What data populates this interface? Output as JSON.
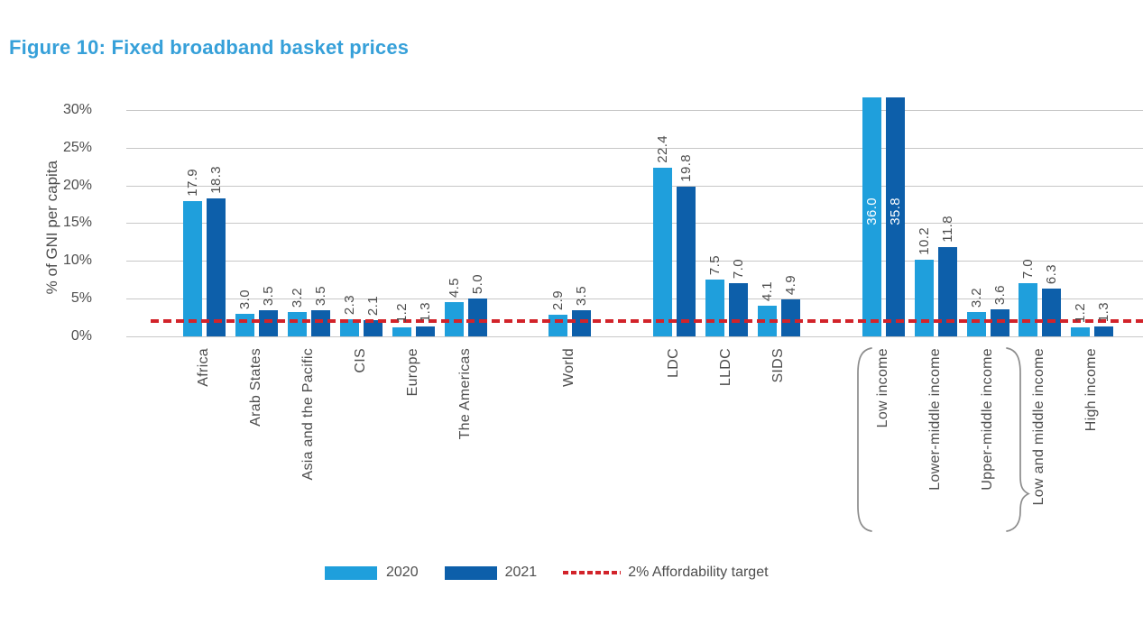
{
  "chart_data": {
    "type": "bar",
    "title": "Figure 10: Fixed broadband basket prices",
    "xlabel": "",
    "ylabel": "% of GNI per capita",
    "ylim": [
      0,
      30
    ],
    "yticks": [
      "0%",
      "5%",
      "10%",
      "15%",
      "20%",
      "25%",
      "30%"
    ],
    "grid": "horizontal",
    "legend_position": "bottom",
    "series_names": [
      "2020",
      "2021"
    ],
    "target_line": {
      "value": 2,
      "label": "2% Affordability target"
    },
    "value_label_precision": 1,
    "groups": [
      {
        "name": "regions",
        "categories": [
          {
            "label": "Africa",
            "values": [
              17.9,
              18.3
            ]
          },
          {
            "label": "Arab States",
            "values": [
              3.0,
              3.5
            ]
          },
          {
            "label": "Asia and the Pacific",
            "values": [
              3.2,
              3.5
            ]
          },
          {
            "label": "CIS",
            "values": [
              2.3,
              2.1
            ]
          },
          {
            "label": "Europe",
            "values": [
              1.2,
              1.3
            ]
          },
          {
            "label": "The Americas",
            "values": [
              4.5,
              5.0
            ]
          }
        ]
      },
      {
        "name": "world",
        "categories": [
          {
            "label": "World",
            "values": [
              2.9,
              3.5
            ]
          }
        ]
      },
      {
        "name": "development-status",
        "categories": [
          {
            "label": "LDC",
            "values": [
              22.4,
              19.8
            ]
          },
          {
            "label": "LLDC",
            "values": [
              7.5,
              7.0
            ]
          },
          {
            "label": "SIDS",
            "values": [
              4.1,
              4.9
            ]
          }
        ]
      },
      {
        "name": "income-levels",
        "categories": [
          {
            "label": "Low income",
            "values": [
              36.0,
              35.8
            ],
            "clipped": true
          },
          {
            "label": "Lower-middle income",
            "values": [
              10.2,
              11.8
            ]
          },
          {
            "label": "Upper-middle income",
            "values": [
              3.2,
              3.6
            ]
          },
          {
            "label": "Low and middle income",
            "values": [
              7.0,
              6.3
            ]
          },
          {
            "label": "High income",
            "values": [
              1.2,
              1.3
            ]
          }
        ]
      }
    ],
    "annotations": {
      "brace": {
        "spans": [
          "Low income",
          "Upper-middle income"
        ],
        "points_to": "Low and middle income"
      }
    }
  },
  "colors": {
    "series_2020": "#1F9FDC",
    "series_2021": "#0D5FAA",
    "target_red": "#D2232A",
    "title_blue": "#36A0D9",
    "text_gray": "#4D4D4D",
    "grid_gray": "#C7C7C7",
    "brace_gray": "#8C8C8C",
    "background": "#FFFFFF",
    "clipped_value_label": "#FFFFFF"
  }
}
